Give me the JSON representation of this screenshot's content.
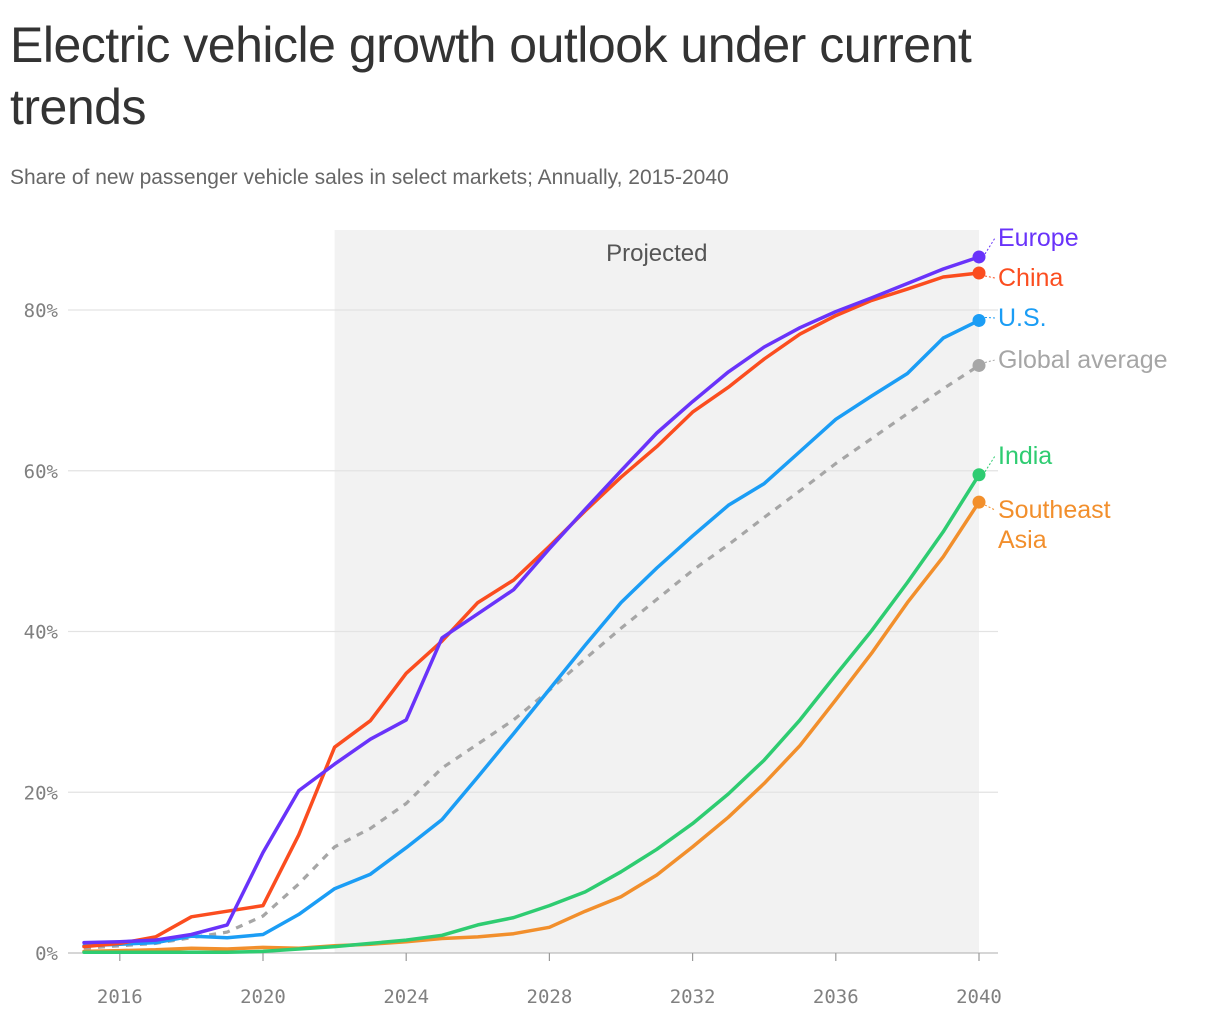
{
  "title": "Electric vehicle growth outlook under current trends",
  "subtitle": "Share of new passenger vehicle sales in select markets; Annually, 2015-2040",
  "chart_data": {
    "type": "line",
    "title": "Electric vehicle growth outlook under current trends",
    "subtitle": "Share of new passenger vehicle sales in select markets; Annually, 2015-2040",
    "xlabel": "",
    "ylabel": "",
    "xlim": [
      2014,
      2040.5
    ],
    "ylim": [
      0,
      90
    ],
    "x_ticks": [
      2016,
      2020,
      2024,
      2028,
      2032,
      2036,
      2040
    ],
    "x_tick_labels": [
      "2016",
      "2020",
      "2024",
      "2028",
      "2032",
      "2036",
      "2040"
    ],
    "y_ticks": [
      0,
      20,
      40,
      60,
      80
    ],
    "y_tick_labels": [
      "0%",
      "20%",
      "40%",
      "60%",
      "80%"
    ],
    "grid": "horizontal",
    "legend": "direct labels at right end of each line",
    "annotation": {
      "text": "Projected",
      "from": 2022,
      "to": 2040
    },
    "x": [
      2015,
      2016,
      2017,
      2018,
      2019,
      2020,
      2021,
      2022,
      2023,
      2024,
      2025,
      2026,
      2027,
      2028,
      2029,
      2030,
      2031,
      2032,
      2033,
      2034,
      2035,
      2036,
      2037,
      2038,
      2039,
      2040
    ],
    "series": [
      {
        "name": "Europe",
        "color": "#6933fa",
        "dashed": false,
        "label_lines": [
          "Europe"
        ],
        "values": [
          1.3,
          1.4,
          1.6,
          2.3,
          3.5,
          12.5,
          20.2,
          23.5,
          26.6,
          29.0,
          39.2,
          42.2,
          45.2,
          50.3,
          55.2,
          60.0,
          64.7,
          68.6,
          72.3,
          75.4,
          77.8,
          79.8,
          81.5,
          83.3,
          85.1,
          86.6
        ]
      },
      {
        "name": "China",
        "color": "#fb4d1f",
        "dashed": false,
        "label_lines": [
          "China"
        ],
        "values": [
          0.8,
          1.2,
          2.0,
          4.5,
          5.2,
          5.9,
          14.7,
          25.6,
          28.9,
          34.8,
          38.8,
          43.6,
          46.4,
          50.6,
          55.0,
          59.2,
          63.0,
          67.3,
          70.4,
          73.9,
          77.0,
          79.3,
          81.2,
          82.6,
          84.1,
          84.6
        ]
      },
      {
        "name": "U.S.",
        "color": "#1b9df5",
        "dashed": false,
        "label_lines": [
          "U.S."
        ],
        "values": [
          0.9,
          1.1,
          1.3,
          2.1,
          1.9,
          2.3,
          4.8,
          8.0,
          9.8,
          13.1,
          16.6,
          21.9,
          27.3,
          32.8,
          38.3,
          43.6,
          47.9,
          51.9,
          55.7,
          58.4,
          62.4,
          66.4,
          69.3,
          72.1,
          76.5,
          78.7
        ]
      },
      {
        "name": "Global average",
        "color": "#a6a6a6",
        "dashed": true,
        "label_lines": [
          "Global average"
        ],
        "values": [
          0.6,
          0.9,
          1.2,
          1.9,
          2.6,
          4.6,
          8.6,
          13.2,
          15.5,
          18.6,
          23.0,
          26.0,
          29.0,
          32.7,
          36.6,
          40.4,
          44.0,
          47.6,
          50.8,
          54.2,
          57.5,
          60.9,
          64.0,
          67.1,
          70.2,
          73.1
        ]
      },
      {
        "name": "India",
        "color": "#2ecc71",
        "dashed": false,
        "label_lines": [
          "India"
        ],
        "values": [
          0.1,
          0.1,
          0.1,
          0.1,
          0.1,
          0.2,
          0.5,
          0.8,
          1.2,
          1.6,
          2.2,
          3.5,
          4.4,
          5.9,
          7.6,
          10.1,
          12.9,
          16.1,
          19.8,
          24.0,
          29.0,
          34.6,
          40.1,
          46.1,
          52.4,
          59.5
        ]
      },
      {
        "name": "Southeast Asia",
        "color": "#f28f2c",
        "dashed": false,
        "label_lines": [
          "Southeast",
          "Asia"
        ],
        "values": [
          0.2,
          0.3,
          0.4,
          0.6,
          0.5,
          0.7,
          0.6,
          0.9,
          1.1,
          1.4,
          1.8,
          2.0,
          2.4,
          3.2,
          5.2,
          7.0,
          9.7,
          13.2,
          16.9,
          21.1,
          25.8,
          31.5,
          37.3,
          43.6,
          49.3,
          56.1
        ]
      }
    ]
  }
}
